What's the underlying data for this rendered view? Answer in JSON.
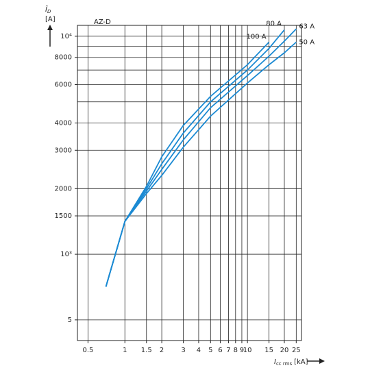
{
  "chart_data": {
    "type": "line",
    "annotation": "AZ-D",
    "y_label_symbol": "Î",
    "y_label_sub": "D",
    "y_label_unit": "[A]",
    "x_label_symbol": "I",
    "x_label_sub": "cc rms",
    "x_label_unit": "[kA]",
    "log_x": true,
    "log_y": true,
    "grid": true,
    "xlim": [
      0.41,
      27.6
    ],
    "ylim": [
      402,
      11220
    ],
    "xticks": [
      0.5,
      1,
      1.5,
      2,
      3,
      4,
      5,
      6,
      7,
      8,
      9,
      10,
      15,
      20,
      25
    ],
    "yticks": [
      {
        "value": 500,
        "label": "5"
      },
      {
        "value": 1000,
        "label": "10³"
      },
      1500.0,
      2000.0,
      3000.0,
      4000.0,
      6000.0,
      8000.0,
      {
        "value": 10000,
        "label": "10⁴"
      }
    ],
    "minor_ygrid": [
      5000,
      7000,
      9000
    ],
    "series": [
      {
        "name": "100 A",
        "color": "#1b8ad3",
        "x": [
          0.7,
          1,
          1.5,
          2,
          3,
          5,
          10,
          15
        ],
        "values": [
          710,
          1415,
          2050,
          2800,
          3900,
          5300,
          7400,
          9400
        ]
      },
      {
        "name": "80 A",
        "color": "#1b8ad3",
        "x": [
          0.7,
          1,
          1.5,
          2,
          3,
          5,
          10,
          15,
          20
        ],
        "values": [
          710,
          1415,
          2000,
          2600,
          3600,
          5000,
          7000,
          8800,
          10700
        ]
      },
      {
        "name": "63 A",
        "color": "#1b8ad3",
        "x": [
          0.7,
          1,
          1.5,
          2,
          3,
          5,
          10,
          15,
          20,
          25
        ],
        "values": [
          710,
          1415,
          1950,
          2450,
          3350,
          4700,
          6600,
          8100,
          9500,
          10800
        ]
      },
      {
        "name": "50 A",
        "color": "#1b8ad3",
        "x": [
          0.7,
          1,
          1.5,
          2,
          3,
          5,
          10,
          15,
          20,
          25
        ],
        "values": [
          710,
          1415,
          1900,
          2300,
          3100,
          4300,
          6100,
          7400,
          8400,
          9400
        ]
      }
    ]
  }
}
